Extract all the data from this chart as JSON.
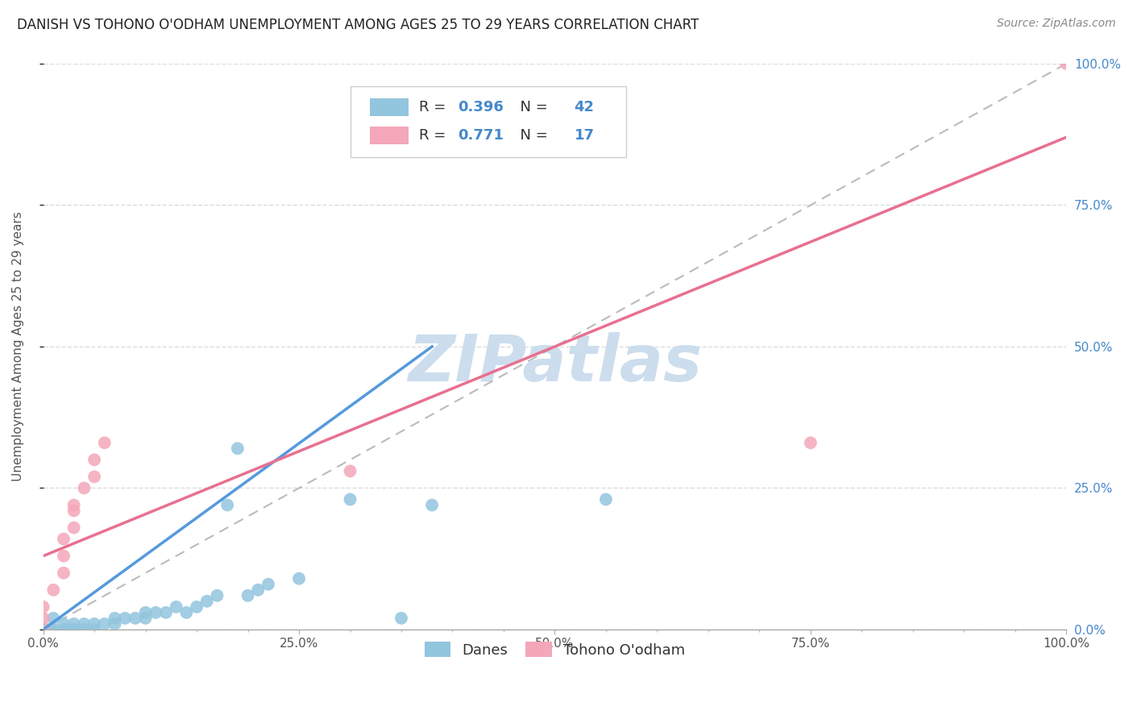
{
  "title": "DANISH VS TOHONO O'ODHAM UNEMPLOYMENT AMONG AGES 25 TO 29 YEARS CORRELATION CHART",
  "source": "Source: ZipAtlas.com",
  "ylabel": "Unemployment Among Ages 25 to 29 years",
  "xlim": [
    0,
    1.0
  ],
  "ylim": [
    0,
    1.0
  ],
  "xtick_labels": [
    "0.0%",
    "",
    "",
    "",
    "",
    "25.0%",
    "",
    "",
    "",
    "",
    "50.0%",
    "",
    "",
    "",
    "",
    "75.0%",
    "",
    "",
    "",
    "",
    "100.0%"
  ],
  "xtick_vals": [
    0.0,
    0.05,
    0.1,
    0.15,
    0.2,
    0.25,
    0.3,
    0.35,
    0.4,
    0.45,
    0.5,
    0.55,
    0.6,
    0.65,
    0.7,
    0.75,
    0.8,
    0.85,
    0.9,
    0.95,
    1.0
  ],
  "right_ytick_labels": [
    "0.0%",
    "25.0%",
    "50.0%",
    "75.0%",
    "100.0%"
  ],
  "right_ytick_vals": [
    0.0,
    0.25,
    0.5,
    0.75,
    1.0
  ],
  "danes_R": 0.396,
  "danes_N": 42,
  "tohono_R": 0.771,
  "tohono_N": 17,
  "danes_color": "#92c5de",
  "tohono_color": "#f4a7b9",
  "danes_line_color": "#5599dd",
  "tohono_line_color": "#e87090",
  "ref_line_color": "#bbbbbb",
  "danes_scatter": [
    [
      0.0,
      0.0
    ],
    [
      0.0,
      0.0
    ],
    [
      0.0,
      0.0
    ],
    [
      0.0,
      0.0
    ],
    [
      0.005,
      0.0
    ],
    [
      0.01,
      0.0
    ],
    [
      0.01,
      0.0
    ],
    [
      0.01,
      0.02
    ],
    [
      0.02,
      0.0
    ],
    [
      0.02,
      0.0
    ],
    [
      0.02,
      0.01
    ],
    [
      0.03,
      0.0
    ],
    [
      0.03,
      0.0
    ],
    [
      0.03,
      0.01
    ],
    [
      0.04,
      0.0
    ],
    [
      0.04,
      0.01
    ],
    [
      0.05,
      0.0
    ],
    [
      0.05,
      0.01
    ],
    [
      0.06,
      0.01
    ],
    [
      0.07,
      0.01
    ],
    [
      0.07,
      0.02
    ],
    [
      0.08,
      0.02
    ],
    [
      0.09,
      0.02
    ],
    [
      0.1,
      0.02
    ],
    [
      0.1,
      0.03
    ],
    [
      0.11,
      0.03
    ],
    [
      0.12,
      0.03
    ],
    [
      0.13,
      0.04
    ],
    [
      0.14,
      0.03
    ],
    [
      0.15,
      0.04
    ],
    [
      0.16,
      0.05
    ],
    [
      0.17,
      0.06
    ],
    [
      0.18,
      0.22
    ],
    [
      0.19,
      0.32
    ],
    [
      0.2,
      0.06
    ],
    [
      0.21,
      0.07
    ],
    [
      0.22,
      0.08
    ],
    [
      0.25,
      0.09
    ],
    [
      0.3,
      0.23
    ],
    [
      0.35,
      0.02
    ],
    [
      0.38,
      0.22
    ],
    [
      0.55,
      0.23
    ]
  ],
  "tohono_scatter": [
    [
      0.0,
      0.0
    ],
    [
      0.0,
      0.02
    ],
    [
      0.0,
      0.04
    ],
    [
      0.01,
      0.07
    ],
    [
      0.02,
      0.1
    ],
    [
      0.02,
      0.13
    ],
    [
      0.02,
      0.16
    ],
    [
      0.03,
      0.18
    ],
    [
      0.03,
      0.21
    ],
    [
      0.03,
      0.22
    ],
    [
      0.04,
      0.25
    ],
    [
      0.05,
      0.27
    ],
    [
      0.05,
      0.3
    ],
    [
      0.06,
      0.33
    ],
    [
      0.3,
      0.28
    ],
    [
      0.75,
      0.33
    ],
    [
      1.0,
      1.0
    ]
  ],
  "danes_trendline_x": [
    0.0,
    0.38
  ],
  "danes_trendline_y": [
    0.0,
    0.5
  ],
  "tohono_trendline_x": [
    0.0,
    1.0
  ],
  "tohono_trendline_y": [
    0.13,
    0.87
  ],
  "ref_trendline": [
    [
      0.0,
      0.0
    ],
    [
      1.0,
      1.0
    ]
  ],
  "watermark": "ZIPatlas",
  "watermark_color": "#ccdded",
  "background_color": "#ffffff",
  "grid_color": "#dddddd",
  "title_fontsize": 12,
  "axis_tick_fontsize": 11,
  "legend_fontsize": 14
}
